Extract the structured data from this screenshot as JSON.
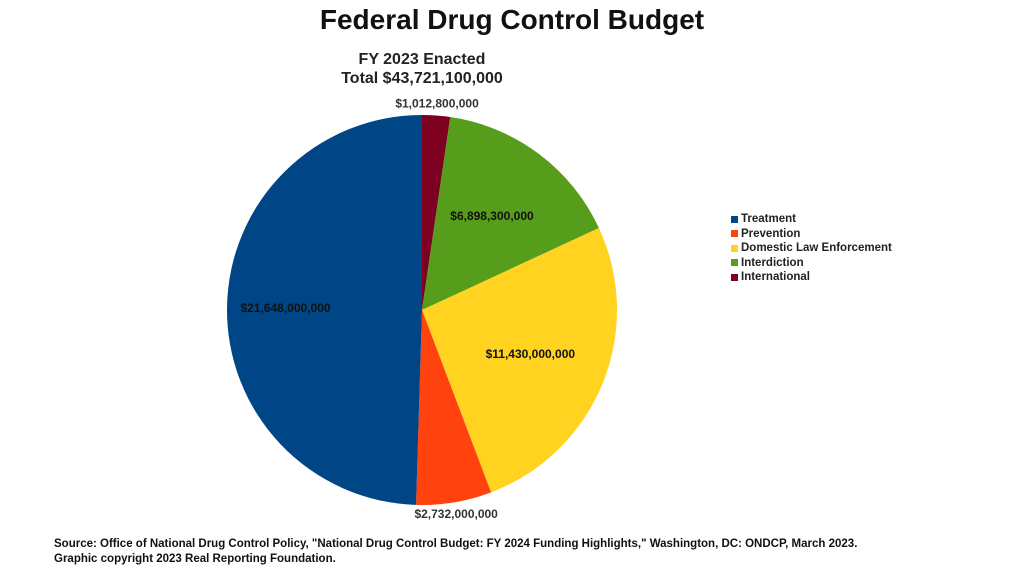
{
  "chart_data": {
    "type": "pie",
    "title": "Federal Drug Control Budget",
    "subtitle_lines": [
      "FY 2023 Enacted",
      "Total $43,721,100,000"
    ],
    "slices": [
      {
        "label": "Treatment",
        "value": 21648000000,
        "value_label": "$21,648,000,000",
        "color": "#004586"
      },
      {
        "label": "Prevention",
        "value": 2732000000,
        "value_label": "$2,732,000,000",
        "color": "#ff420e"
      },
      {
        "label": "Domestic Law Enforcement",
        "value": 11430000000,
        "value_label": "$11,430,000,000",
        "color": "#ffd320"
      },
      {
        "label": "Interdiction",
        "value": 6898300000,
        "value_label": "$6,898,300,000",
        "color": "#579d1c"
      },
      {
        "label": "International",
        "value": 1012800000,
        "value_label": "$1,012,800,000",
        "color": "#7e0021"
      }
    ],
    "legend_position": "right"
  },
  "source": {
    "line1": "Source: Office of National Drug Control Policy, \"National Drug Control Budget: FY 2024 Funding Highlights,\" Washington, DC: ONDCP, March 2023.",
    "line2": "Graphic copyright 2023 Real Reporting Foundation."
  }
}
